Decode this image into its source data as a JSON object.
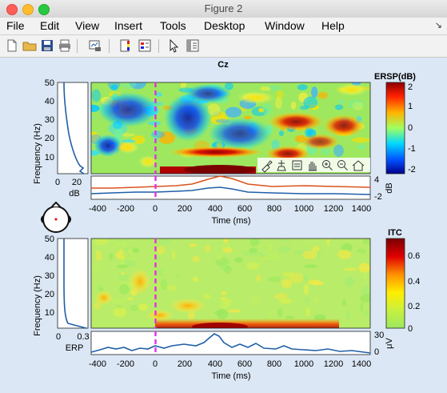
{
  "window": {
    "title": "Figure 2"
  },
  "menu": [
    "File",
    "Edit",
    "View",
    "Insert",
    "Tools",
    "Desktop",
    "Window",
    "Help"
  ],
  "toolbar": [
    "new-figure-icon",
    "open-folder-icon",
    "save-icon",
    "print-icon",
    "link-plot-icon",
    "insert-colorbar-icon",
    "insert-legend-icon",
    "pointer-icon",
    "property-editor-icon"
  ],
  "axes_toolbar": [
    "brush-icon",
    "data-cursor-icon",
    "tip-icon",
    "pan-icon",
    "zoom-in-icon",
    "zoom-out-icon",
    "home-icon"
  ],
  "figure": {
    "channel": "Cz",
    "ersp_ylabel": "Frequency (Hz)",
    "itc_ylabel": "Frequency (Hz)",
    "time_label_top": "Time (ms)",
    "time_label_bottom": "Time (ms)",
    "db_label": "dB",
    "erp_label": "ERP",
    "ersp_colorbar_label": "ERSP(dB)",
    "itc_colorbar_label": "ITC",
    "db_right_label": "dB",
    "uv_right_label": "μV",
    "baseline_ticks": [
      "0",
      "20"
    ],
    "erp_ticks": [
      "0",
      "0.3"
    ],
    "db_right_ticks": [
      "4",
      "-2"
    ],
    "uv_right_ticks": [
      "30",
      "0"
    ]
  },
  "chart_data": [
    {
      "type": "heatmap",
      "title": "Cz",
      "xlabel": "Time (ms)",
      "ylabel": "Frequency (Hz)",
      "xlim": [
        -450,
        1450
      ],
      "ylim": [
        3,
        50
      ],
      "x_ticks": [
        "-400",
        "-200",
        "0",
        "200",
        "400",
        "600",
        "800",
        "1000",
        "1200",
        "1400"
      ],
      "y_ticks": [
        "10",
        "20",
        "30",
        "40",
        "50"
      ],
      "colorbar": {
        "label": "ERSP(dB)",
        "range": [
          -2.2,
          2.2
        ],
        "ticks": [
          "2",
          "1",
          "0",
          "-1",
          "-2"
        ]
      },
      "stimulus_marker_ms": 0,
      "features": [
        {
          "t": 550,
          "f": 12,
          "value": 2.2
        },
        {
          "t": 450,
          "f": 5,
          "value": 2.2
        },
        {
          "t": 900,
          "f": 20,
          "value": 1.8
        },
        {
          "t": 1000,
          "f": 25,
          "value": 1.4
        },
        {
          "t": 1300,
          "f": 18,
          "value": 1.6
        },
        {
          "t": 200,
          "f": 20,
          "value": -1.5
        },
        {
          "t": 600,
          "f": 30,
          "value": -1.5
        }
      ]
    },
    {
      "type": "line",
      "xlabel": "Time (ms)",
      "ylabel": "dB",
      "ylim": [
        -2,
        4
      ],
      "series": [
        {
          "x": [
            -450,
            -200,
            0,
            200,
            300,
            400,
            500,
            600,
            800,
            1000,
            1200,
            1450
          ],
          "values": [
            0.3,
            0.2,
            0.4,
            0.5,
            1.5,
            3.0,
            2.0,
            0.8,
            0.6,
            0.7,
            0.5,
            0.5
          ]
        },
        {
          "x": [
            -450,
            -200,
            0,
            200,
            300,
            400,
            500,
            600,
            800,
            1000,
            1200,
            1450
          ],
          "values": [
            -1.2,
            -1.0,
            -1.0,
            -0.8,
            -0.5,
            0.0,
            -0.3,
            -1.0,
            -1.1,
            -1.3,
            -1.2,
            -1.4
          ]
        }
      ]
    },
    {
      "type": "heatmap",
      "xlabel": "Time (ms)",
      "ylabel": "Frequency (Hz)",
      "xlim": [
        -450,
        1450
      ],
      "ylim": [
        3,
        50
      ],
      "x_ticks": [
        "-400",
        "-200",
        "0",
        "200",
        "400",
        "600",
        "800",
        "1000",
        "1200",
        "1400"
      ],
      "y_ticks": [
        "10",
        "20",
        "30",
        "40",
        "50"
      ],
      "colorbar": {
        "label": "ITC",
        "range": [
          0,
          0.7
        ],
        "ticks": [
          "0.6",
          "0.4",
          "0.2",
          "0"
        ]
      },
      "stimulus_marker_ms": 0,
      "features": [
        {
          "t": 400,
          "f": 4,
          "value": 0.7
        },
        {
          "t": 200,
          "f": 8,
          "value": 0.35
        },
        {
          "t": -150,
          "f": 25,
          "value": 0.3
        }
      ]
    },
    {
      "type": "line",
      "ylabel": "μV",
      "ylim": [
        0,
        30
      ],
      "series": [
        {
          "x": [
            -450,
            -300,
            -200,
            -100,
            0,
            100,
            200,
            300,
            350,
            400,
            450,
            500,
            600,
            700,
            800,
            900,
            1000,
            1100,
            1200,
            1300,
            1450
          ],
          "values": [
            3,
            5,
            6,
            4,
            8,
            10,
            12,
            14,
            20,
            26,
            22,
            14,
            12,
            8,
            10,
            8,
            6,
            4,
            5,
            3,
            2
          ]
        }
      ]
    }
  ],
  "colors": {
    "stim_line": "#e033e0",
    "series_blue": "#1f5fa8",
    "series_orange": "#d8541c"
  }
}
